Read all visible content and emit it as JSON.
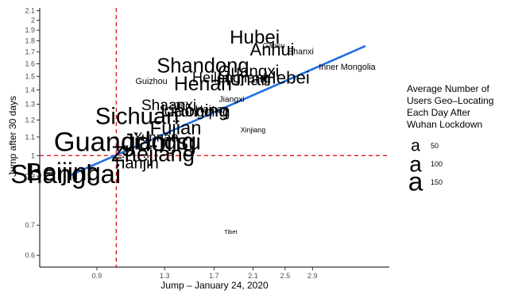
{
  "chart_data": {
    "type": "scatter",
    "xlabel": "Jump – January 24, 2020",
    "ylabel": "Jump after 30 days",
    "x_scale": "log",
    "y_scale": "log",
    "xlim": [
      0.66,
      4.4
    ],
    "ylim": [
      0.565,
      2.13
    ],
    "x_ticks": [
      0.9,
      1.3,
      1.7,
      2.1,
      2.5,
      2.9
    ],
    "x_tick_labels": [
      "0.9",
      "1.3",
      "1.7",
      "2.1",
      "2.5",
      "2.9"
    ],
    "y_ticks": [
      0.6,
      0.7,
      0.9,
      1.0,
      1.1,
      1.2,
      1.3,
      1.4,
      1.5,
      1.6,
      1.7,
      1.8,
      1.9,
      2.0,
      2.1
    ],
    "y_tick_labels": [
      "0.6",
      "0.7",
      "0.9",
      "1",
      "1.1",
      "1.2",
      "1.3",
      "1.4",
      "1.5",
      "1.6",
      "1.7",
      "1.8",
      "1.9",
      "2",
      "2.1"
    ],
    "reference_lines": {
      "x": 1.0,
      "y": 1.0,
      "color": "#e41a1c",
      "style": "dashed"
    },
    "fit_line": {
      "x": [
        0.78,
        3.85
      ],
      "y": [
        0.905,
        1.75
      ],
      "color": "#1f6fe5"
    },
    "grid": false,
    "legend": {
      "title_lines": [
        "Average Number of",
        "Users Geo–Locating",
        "Each Day After",
        "Wuhan Lockdown"
      ],
      "entries": [
        {
          "label": "50",
          "value": 50
        },
        {
          "label": "100",
          "value": 100
        },
        {
          "label": "150",
          "value": 150
        }
      ],
      "position": "right"
    },
    "points": [
      {
        "label": "Hubei",
        "x": 2.12,
        "y": 1.83,
        "size": 70,
        "color": "#c0504d"
      },
      {
        "label": "Gansu",
        "x": 2.35,
        "y": 1.76,
        "size": 5,
        "color": "#000000"
      },
      {
        "label": "Anhui",
        "x": 2.33,
        "y": 1.72,
        "size": 55,
        "color": "#000000"
      },
      {
        "label": "Shanxi",
        "x": 2.72,
        "y": 1.7,
        "size": 8,
        "color": "#000000"
      },
      {
        "label": "Inner Mongolia",
        "x": 3.5,
        "y": 1.57,
        "size": 8,
        "color": "#000000"
      },
      {
        "label": "Shandong",
        "x": 1.6,
        "y": 1.58,
        "size": 80,
        "color": "#000000"
      },
      {
        "label": "Guangxi",
        "x": 2.05,
        "y": 1.54,
        "size": 48,
        "color": "#000000"
      },
      {
        "label": "Heilongjiang",
        "x": 1.87,
        "y": 1.49,
        "size": 34,
        "color": "#000000"
      },
      {
        "label": "Hunan",
        "x": 2.0,
        "y": 1.48,
        "size": 62,
        "color": "#000000"
      },
      {
        "label": "Hebei",
        "x": 2.52,
        "y": 1.49,
        "size": 58,
        "color": "#000000"
      },
      {
        "label": "Guizhou",
        "x": 1.21,
        "y": 1.46,
        "size": 8,
        "color": "#000000"
      },
      {
        "label": "Henan",
        "x": 1.6,
        "y": 1.44,
        "size": 75,
        "color": "#000000"
      },
      {
        "label": "Jiangxi",
        "x": 1.87,
        "y": 1.33,
        "size": 7,
        "color": "#000000"
      },
      {
        "label": "Shaanxi",
        "x": 1.33,
        "y": 1.29,
        "size": 40,
        "color": "#000000"
      },
      {
        "label": "Jilin",
        "x": 1.43,
        "y": 1.29,
        "size": 12,
        "color": "#000000"
      },
      {
        "label": "Liaoning",
        "x": 1.53,
        "y": 1.26,
        "size": 60,
        "color": "#000000"
      },
      {
        "label": "Chongqing",
        "x": 1.55,
        "y": 1.25,
        "size": 30,
        "color": "#000000"
      },
      {
        "label": "Hainan",
        "x": 1.68,
        "y": 1.27,
        "size": 15,
        "color": "#000000"
      },
      {
        "label": "Sichuan",
        "x": 1.12,
        "y": 1.22,
        "size": 110,
        "color": "#000000"
      },
      {
        "label": "Fujian",
        "x": 1.38,
        "y": 1.15,
        "size": 68,
        "color": "#000000"
      },
      {
        "label": "Xinjiang",
        "x": 2.1,
        "y": 1.14,
        "size": 4,
        "color": "#000000"
      },
      {
        "label": "Yunnan",
        "x": 1.24,
        "y": 1.1,
        "size": 28,
        "color": "#000000"
      },
      {
        "label": "Jiangsu",
        "x": 1.28,
        "y": 1.07,
        "size": 105,
        "color": "#000000"
      },
      {
        "label": "Guangdong",
        "x": 1.05,
        "y": 1.07,
        "size": 160,
        "color": "#000000"
      },
      {
        "label": "Zhejiang",
        "x": 1.22,
        "y": 1.01,
        "size": 95,
        "color": "#000000"
      },
      {
        "label": "Tianjin",
        "x": 1.11,
        "y": 0.96,
        "size": 45,
        "color": "#000000"
      },
      {
        "label": "Beijing",
        "x": 0.75,
        "y": 0.92,
        "size": 130,
        "color": "#000000"
      },
      {
        "label": "Shanghai",
        "x": 0.76,
        "y": 0.91,
        "size": 145,
        "color": "#000000"
      },
      {
        "label": "Tibet",
        "x": 1.86,
        "y": 0.677,
        "size": 2,
        "color": "#000000"
      }
    ]
  }
}
